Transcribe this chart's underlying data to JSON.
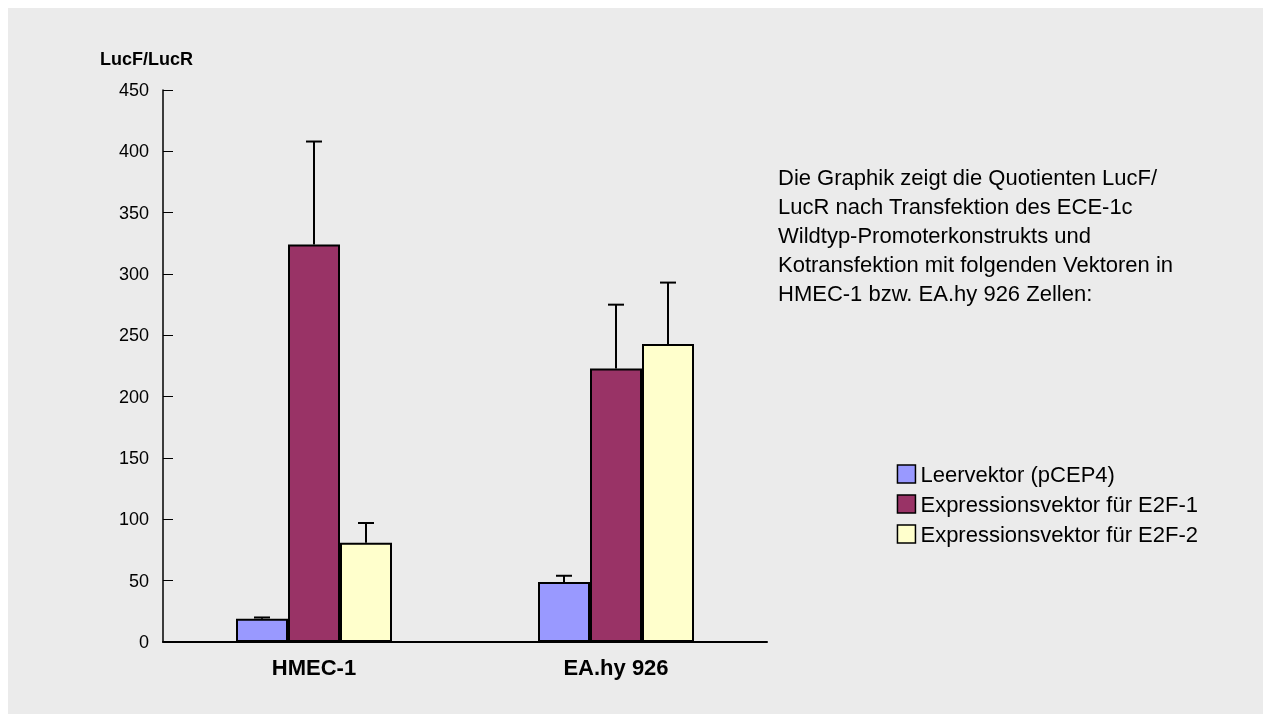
{
  "chart_data": {
    "type": "bar",
    "ylabel": "LucF/LucR",
    "categories": [
      "HMEC-1",
      "EA.hy 926"
    ],
    "series": [
      {
        "name": "Leervektor (pCEP4)",
        "color": "#9999ff",
        "values": [
          19,
          49
        ],
        "errors": [
          [
            19,
            20
          ],
          [
            49,
            54
          ]
        ]
      },
      {
        "name": "Expressionsvektor für E2F-1",
        "color": "#993366",
        "values": [
          324,
          223
        ],
        "errors": [
          [
            324,
            408
          ],
          [
            223,
            275
          ]
        ]
      },
      {
        "name": "Expressionsvektor für E2F-2",
        "color": "#ffffcc",
        "values": [
          81,
          243
        ],
        "errors": [
          [
            81,
            97
          ],
          [
            243,
            293
          ]
        ]
      }
    ],
    "ylim": [
      0,
      450
    ],
    "yticks": [
      0,
      50,
      100,
      150,
      200,
      250,
      300,
      350,
      400,
      450
    ],
    "grid": false,
    "legend": "right",
    "annotations": [
      "Die Graphik zeigt die Quotienten LucF/LucR nach Transfektion des ECE-1c Wildtyp-Promoterkonstrukts und Kotransfektion mit folgenden Vektoren in HMEC-1 bzw. EA.hy 926 Zellen:"
    ]
  }
}
